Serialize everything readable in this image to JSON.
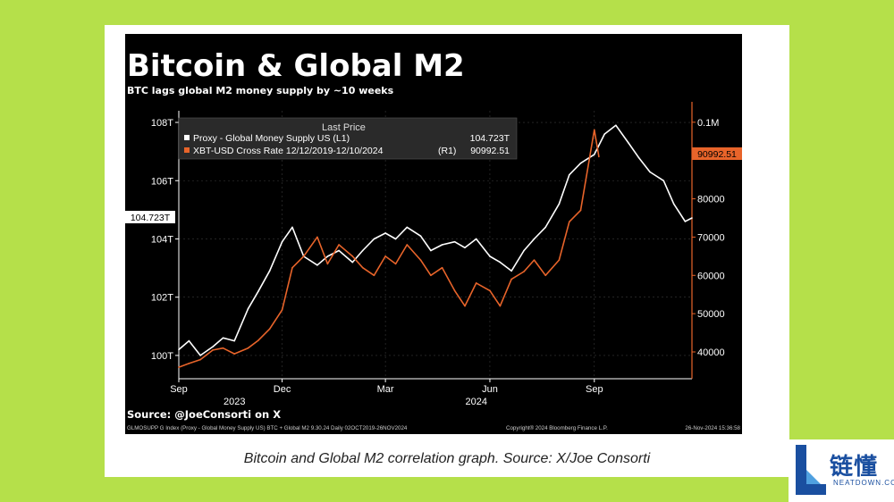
{
  "chart_data": {
    "type": "line",
    "title": "Bitcoin & Global M2",
    "subtitle": "BTC lags global M2 money supply by ~10 weeks",
    "legend": {
      "header": "Last Price",
      "placement": "top-left",
      "entries": [
        {
          "label": "Proxy - Global Money Supply US  (L1)",
          "value": "104.723T",
          "color": "#ffffff"
        },
        {
          "label": "XBT-USD Cross Rate 12/12/2019-12/10/2024",
          "axis_tag": "(R1)",
          "value": "90992.51",
          "color": "#e8642a"
        }
      ]
    },
    "left_axis": {
      "ticks": [
        "108T",
        "106T",
        "104T",
        "102T",
        "100T"
      ],
      "values": [
        108,
        106,
        104,
        102,
        100
      ],
      "range": [
        99.2,
        108.4
      ],
      "last_value_label": "104.723T",
      "last_value": 104.723
    },
    "right_axis": {
      "ticks": [
        "0.1M",
        "80000",
        "70000",
        "60000",
        "50000",
        "40000"
      ],
      "values": [
        100000,
        80000,
        70000,
        60000,
        50000,
        40000
      ],
      "range": [
        33000,
        103000
      ],
      "last_value_label": "90992.51",
      "last_value": 90992.51
    },
    "x_axis": {
      "ticks": [
        "Sep",
        "Dec",
        "Mar",
        "Jun",
        "Sep"
      ],
      "tick_dates": [
        "2023-09-01",
        "2023-12-01",
        "2024-03-01",
        "2024-06-01",
        "2024-09-01"
      ],
      "years": [
        {
          "label": "2023",
          "date": "2023-10-20"
        },
        {
          "label": "2024",
          "date": "2024-05-20"
        }
      ],
      "range": [
        "2023-09-01",
        "2024-11-26"
      ]
    },
    "series": [
      {
        "name": "Proxy - Global Money Supply US  (L1)",
        "axis": "left",
        "color": "#ffffff",
        "x": [
          "2023-09-01",
          "2023-09-10",
          "2023-09-20",
          "2023-10-01",
          "2023-10-10",
          "2023-10-20",
          "2023-11-01",
          "2023-11-10",
          "2023-11-20",
          "2023-12-01",
          "2023-12-10",
          "2023-12-20",
          "2024-01-01",
          "2024-01-10",
          "2024-01-20",
          "2024-02-01",
          "2024-02-10",
          "2024-02-20",
          "2024-03-01",
          "2024-03-10",
          "2024-03-20",
          "2024-04-01",
          "2024-04-10",
          "2024-04-20",
          "2024-05-01",
          "2024-05-10",
          "2024-05-20",
          "2024-06-01",
          "2024-06-10",
          "2024-06-20",
          "2024-07-01",
          "2024-07-10",
          "2024-07-20",
          "2024-08-01",
          "2024-08-10",
          "2024-08-20",
          "2024-09-01",
          "2024-09-10",
          "2024-09-20",
          "2024-10-01",
          "2024-10-10",
          "2024-10-20",
          "2024-11-01",
          "2024-11-10",
          "2024-11-20",
          "2024-11-26"
        ],
        "values": [
          100.2,
          100.5,
          100.0,
          100.3,
          100.6,
          100.5,
          101.6,
          102.2,
          102.9,
          103.9,
          104.4,
          103.4,
          103.1,
          103.4,
          103.6,
          103.2,
          103.6,
          104.0,
          104.2,
          104.0,
          104.4,
          104.1,
          103.6,
          103.8,
          103.9,
          103.7,
          104.0,
          103.4,
          103.2,
          102.9,
          103.6,
          104.0,
          104.4,
          105.2,
          106.2,
          106.6,
          106.9,
          107.6,
          107.9,
          107.3,
          106.8,
          106.3,
          106.0,
          105.2,
          104.6,
          104.72
        ]
      },
      {
        "name": "XBT-USD Cross Rate 12/12/2019-12/10/2024",
        "axis": "right",
        "color": "#e8642a",
        "x": [
          "2023-09-01",
          "2023-09-10",
          "2023-09-20",
          "2023-10-01",
          "2023-10-10",
          "2023-10-20",
          "2023-11-01",
          "2023-11-10",
          "2023-11-20",
          "2023-12-01",
          "2023-12-10",
          "2023-12-20",
          "2024-01-01",
          "2024-01-10",
          "2024-01-20",
          "2024-02-01",
          "2024-02-10",
          "2024-02-20",
          "2024-03-01",
          "2024-03-10",
          "2024-03-20",
          "2024-04-01",
          "2024-04-10",
          "2024-04-20",
          "2024-05-01",
          "2024-05-10",
          "2024-05-20",
          "2024-06-01",
          "2024-06-10",
          "2024-06-20",
          "2024-07-01",
          "2024-07-10",
          "2024-07-20",
          "2024-08-01",
          "2024-08-10",
          "2024-08-20",
          "2024-09-01",
          "2024-09-05"
        ],
        "values": [
          36000,
          37000,
          38000,
          40500,
          41000,
          39500,
          41000,
          43000,
          46000,
          51000,
          62000,
          65000,
          70000,
          63000,
          68000,
          65000,
          62000,
          60000,
          65000,
          63000,
          68000,
          64000,
          60000,
          62000,
          56000,
          52000,
          58000,
          56000,
          52000,
          59000,
          61000,
          64000,
          60000,
          64000,
          74000,
          77000,
          98000,
          91000
        ]
      }
    ],
    "source": "Source: @JoeConsorti on X",
    "footer_left": "GLMOSUPP G Index (Proxy - Global Money Supply US) BTC + Global M2 9.30.24  Daily 02OCT2019-26NOV2024",
    "footer_mid": "Copyright® 2024 Bloomberg Finance L.P.",
    "footer_right": "26-Nov-2024 15:36:58",
    "grid": true,
    "colors": {
      "background": "#000000",
      "axis_right": "#e8642a",
      "grid": "#3a3a3a",
      "legend_bg": "#2a2a2a"
    }
  },
  "caption": "Bitcoin and Global M2 correlation graph. Source: X/Joe Consorti",
  "logo": {
    "chinese": "链懂",
    "english": "NEATDOWN.COM",
    "icon": "l-logo-icon"
  }
}
